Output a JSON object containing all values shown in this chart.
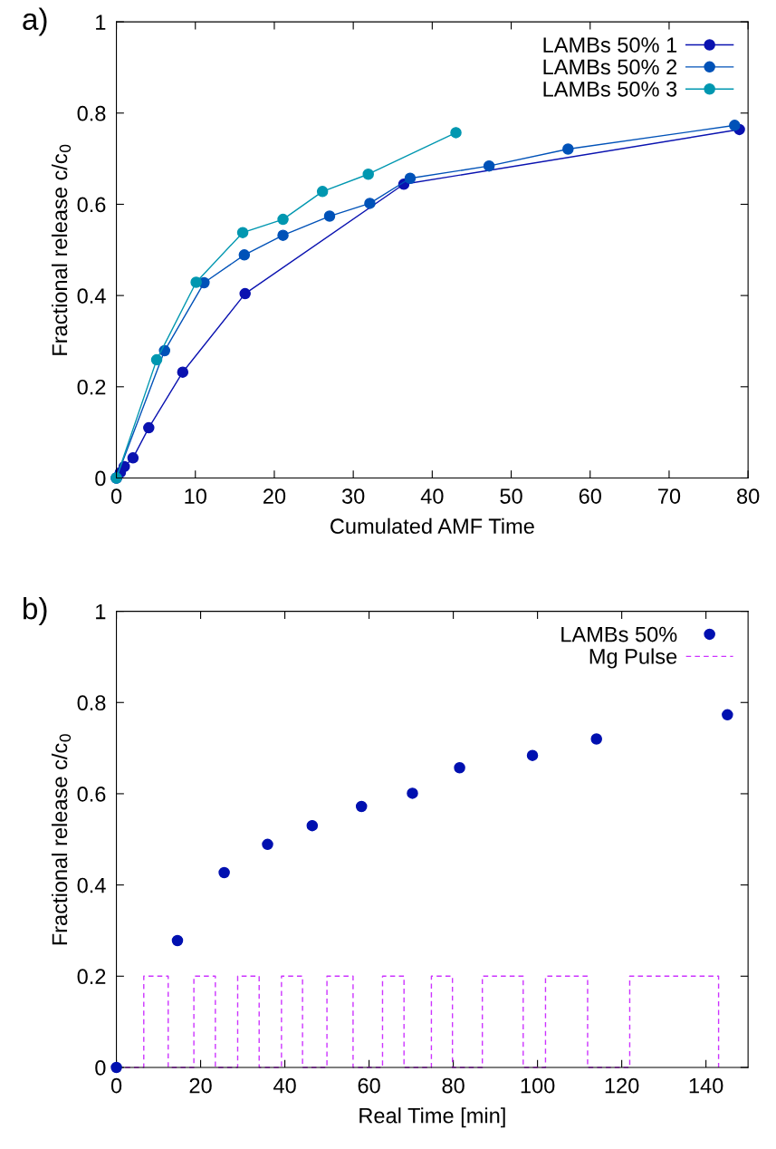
{
  "chart_data": [
    {
      "type": "line",
      "xlabel": "Cumulated AMF Time",
      "ylabel": "Fractional release c/c$_{0}$",
      "annotations": [
        "a)"
      ],
      "xlim": [
        0,
        80
      ],
      "xticks": [
        0,
        10,
        20,
        30,
        40,
        50,
        60,
        70,
        80
      ],
      "ylim": [
        0,
        1
      ],
      "yticks": [
        0,
        0.2,
        0.4,
        0.6,
        0.8,
        1
      ],
      "legend": "top right",
      "marker": "circle",
      "line_style": "solid",
      "series": [
        {
          "name": "LAMBs 50% 1",
          "color": "#0a12b0",
          "x": [
            0,
            0.5,
            1,
            2.1,
            4.1,
            8.4,
            16.3,
            36.4,
            78.9
          ],
          "values": [
            0,
            0.012,
            0.025,
            0.044,
            0.11,
            0.232,
            0.404,
            0.644,
            0.764
          ]
        },
        {
          "name": "LAMBs 50% 2",
          "color": "#0052b8",
          "x": [
            0,
            6.1,
            11.1,
            16.2,
            21.1,
            27.0,
            32.1,
            37.2,
            47.2,
            57.2,
            78.3
          ],
          "values": [
            0,
            0.279,
            0.428,
            0.489,
            0.532,
            0.574,
            0.602,
            0.657,
            0.684,
            0.721,
            0.773
          ]
        },
        {
          "name": "LAMBs 50% 3",
          "color": "#0097b0",
          "x": [
            0,
            5.1,
            10.1,
            16.0,
            21.1,
            26.1,
            31.9,
            43.0
          ],
          "values": [
            0,
            0.259,
            0.429,
            0.538,
            0.567,
            0.628,
            0.666,
            0.757
          ]
        }
      ]
    },
    {
      "type": "scatter",
      "xlabel": "Real Time [min]",
      "ylabel": "Fractional release c/c$_{0}$",
      "annotations": [
        "b)"
      ],
      "xlim": [
        0,
        150
      ],
      "xticks": [
        0,
        20,
        40,
        60,
        80,
        100,
        120,
        140
      ],
      "ylim": [
        0,
        1
      ],
      "yticks": [
        0,
        0.2,
        0.4,
        0.6,
        0.8,
        1
      ],
      "legend": "top right",
      "marker": "circle",
      "series": [
        {
          "name": "LAMBs 50%",
          "color": "#0010b0",
          "x": [
            0,
            14.5,
            25.6,
            35.9,
            46.5,
            58.2,
            70.3,
            81.5,
            98.8,
            114.0,
            145.1
          ],
          "values": [
            0,
            0.278,
            0.427,
            0.489,
            0.53,
            0.572,
            0.601,
            0.657,
            0.684,
            0.72,
            0.773
          ]
        },
        {
          "name": "Mg Pulse",
          "type": "line",
          "marker": "none",
          "line_style": "dashed",
          "color": "#cc33ff",
          "x": [
            0,
            6.5,
            6.5,
            12.3,
            12.3,
            18.4,
            18.4,
            23.5,
            23.5,
            28.8,
            28.8,
            33.9,
            33.9,
            39.2,
            39.2,
            44.2,
            44.2,
            50.0,
            50.0,
            56.2,
            56.2,
            63.2,
            63.2,
            68.3,
            68.3,
            74.8,
            74.8,
            79.8,
            79.8,
            86.9,
            86.9,
            96.6,
            96.6,
            101.9,
            101.9,
            111.9,
            111.9,
            121.9,
            121.9,
            143.0,
            143.0
          ],
          "values": [
            0,
            0,
            0.2,
            0.2,
            0,
            0,
            0.2,
            0.2,
            0,
            0,
            0.2,
            0.2,
            0,
            0,
            0.2,
            0.2,
            0,
            0,
            0.2,
            0.2,
            0,
            0,
            0.2,
            0.2,
            0,
            0,
            0.2,
            0.2,
            0,
            0,
            0.2,
            0.2,
            0,
            0,
            0.2,
            0.2,
            0,
            0,
            0.2,
            0.2,
            0
          ]
        }
      ]
    }
  ]
}
